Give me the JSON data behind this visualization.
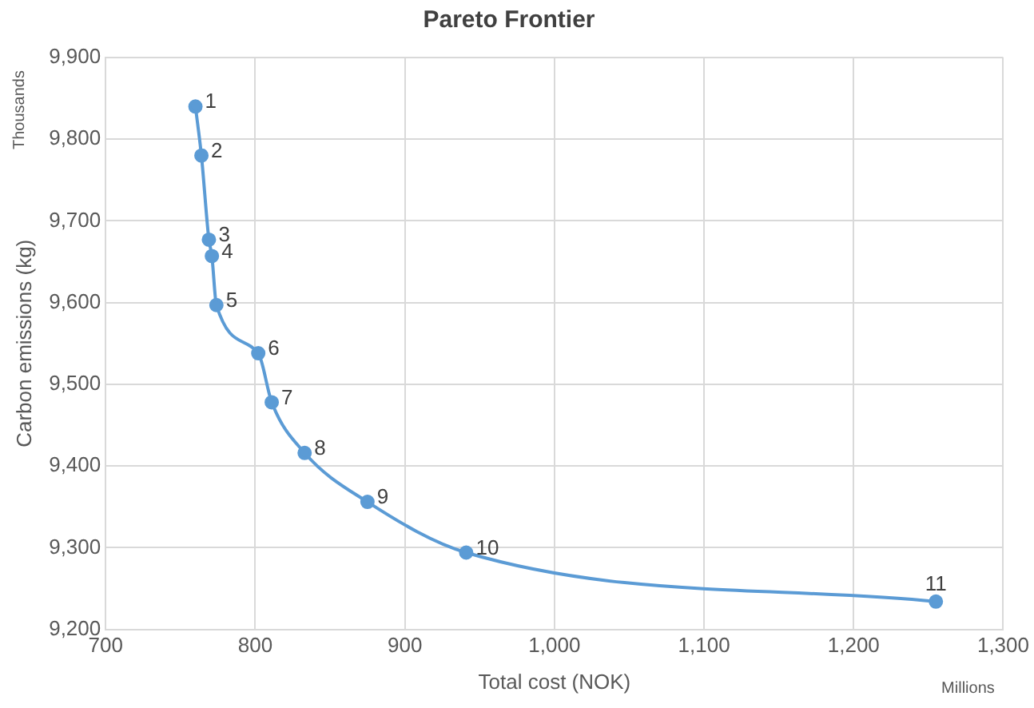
{
  "chart_data": {
    "type": "line",
    "title": "Pareto Frontier",
    "xlabel": "Total cost (NOK)",
    "ylabel": "Carbon emissions (kg)",
    "annotations": [
      "Thousands",
      "Millions",
      {
        "text": "1",
        "x": 760,
        "y": 9840
      },
      {
        "text": "2",
        "x": 764,
        "y": 9780
      },
      {
        "text": "3",
        "x": 769,
        "y": 9677
      },
      {
        "text": "4",
        "x": 771,
        "y": 9657
      },
      {
        "text": "5",
        "x": 774,
        "y": 9597
      },
      {
        "text": "6",
        "x": 802,
        "y": 9538
      },
      {
        "text": "7",
        "x": 811,
        "y": 9478
      },
      {
        "text": "8",
        "x": 833,
        "y": 9416
      },
      {
        "text": "9",
        "x": 875,
        "y": 9356
      },
      {
        "text": "10",
        "x": 941,
        "y": 9294
      },
      {
        "text": "11",
        "x": 1255,
        "y": 9234
      }
    ],
    "x": [
      760,
      764,
      769,
      771,
      774,
      802,
      811,
      833,
      875,
      941,
      1255
    ],
    "series": [
      {
        "color": "#5b9bd5",
        "values": [
          9840,
          9780,
          9677,
          9657,
          9597,
          9538,
          9478,
          9416,
          9356,
          9294,
          9234
        ]
      }
    ],
    "xlim": [
      700,
      1300
    ],
    "xticks": [
      {
        "value": 700,
        "label": "700"
      },
      {
        "value": 800,
        "label": "800"
      },
      {
        "value": 900,
        "label": "900"
      },
      {
        "value": 1000,
        "label": "1,000"
      },
      {
        "value": 1100,
        "label": "1,100"
      },
      {
        "value": 1200,
        "label": "1,200"
      },
      {
        "value": 1300,
        "label": "1,300"
      }
    ],
    "ylim": [
      9200,
      9900
    ],
    "yticks": [
      {
        "value": 9200,
        "label": "9,200"
      },
      {
        "value": 9300,
        "label": "9,300"
      },
      {
        "value": 9400,
        "label": "9,400"
      },
      {
        "value": 9500,
        "label": "9,500"
      },
      {
        "value": 9600,
        "label": "9,600"
      },
      {
        "value": 9700,
        "label": "9,700"
      },
      {
        "value": 9800,
        "label": "9,800"
      },
      {
        "value": 9900,
        "label": "9,900"
      }
    ],
    "grid": true,
    "marker": "circle",
    "line_style": "solid"
  }
}
